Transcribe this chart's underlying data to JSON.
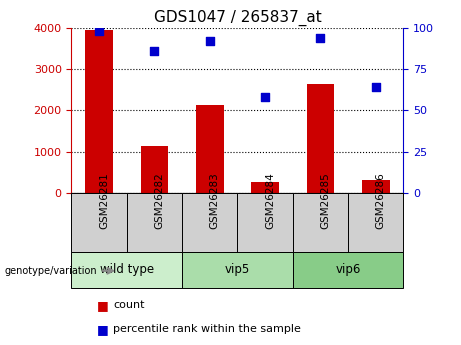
{
  "title": "GDS1047 / 265837_at",
  "categories": [
    "GSM26281",
    "GSM26282",
    "GSM26283",
    "GSM26284",
    "GSM26285",
    "GSM26286"
  ],
  "bar_values": [
    3950,
    1130,
    2130,
    280,
    2640,
    320
  ],
  "percentile_values": [
    98,
    86,
    92,
    58,
    94,
    64
  ],
  "ylim_left": [
    0,
    4000
  ],
  "ylim_right": [
    0,
    100
  ],
  "yticks_left": [
    0,
    1000,
    2000,
    3000,
    4000
  ],
  "yticks_right": [
    0,
    25,
    50,
    75,
    100
  ],
  "bar_color": "#cc0000",
  "dot_color": "#0000cc",
  "groups": [
    {
      "label": "wild type",
      "indices": [
        0,
        1
      ],
      "color": "#cceecc"
    },
    {
      "label": "vip5",
      "indices": [
        2,
        3
      ],
      "color": "#99dd99"
    },
    {
      "label": "vip6",
      "indices": [
        4,
        5
      ],
      "color": "#88cc88"
    }
  ],
  "ylabel_left_color": "#cc0000",
  "ylabel_right_color": "#0000cc",
  "bar_width": 0.5,
  "dot_size": 40,
  "legend_count_label": "count",
  "legend_pct_label": "percentile rank within the sample",
  "genotype_label": "genotype/variation"
}
